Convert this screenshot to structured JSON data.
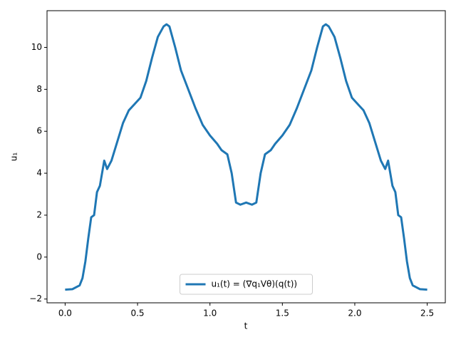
{
  "chart_data": {
    "type": "line",
    "xlabel": "t",
    "ylabel": "u₁",
    "series": [
      {
        "name": "u₁(t) = (∇q₁Vθ)(q(t))",
        "color": "#1f77b4",
        "x": [
          0,
          0.05,
          0.1,
          0.12,
          0.14,
          0.16,
          0.18,
          0.2,
          0.22,
          0.24,
          0.27,
          0.29,
          0.32,
          0.36,
          0.4,
          0.44,
          0.48,
          0.52,
          0.56,
          0.6,
          0.64,
          0.68,
          0.7,
          0.72,
          0.76,
          0.8,
          0.85,
          0.9,
          0.95,
          1.0,
          1.05,
          1.08,
          1.12,
          1.15,
          1.18,
          1.21,
          1.25,
          1.29,
          1.32,
          1.35,
          1.38,
          1.42,
          1.45,
          1.5,
          1.55,
          1.6,
          1.65,
          1.7,
          1.74,
          1.78,
          1.8,
          1.82,
          1.86,
          1.9,
          1.94,
          1.98,
          2.02,
          2.06,
          2.1,
          2.14,
          2.18,
          2.21,
          2.23,
          2.26,
          2.28,
          2.3,
          2.32,
          2.34,
          2.36,
          2.38,
          2.4,
          2.45,
          2.5
        ],
        "values": [
          -1.55,
          -1.53,
          -1.35,
          -1.0,
          -0.2,
          0.9,
          1.9,
          2.0,
          3.1,
          3.4,
          4.6,
          4.2,
          4.6,
          5.5,
          6.4,
          7.0,
          7.3,
          7.6,
          8.4,
          9.5,
          10.5,
          11.0,
          11.1,
          11.0,
          10.0,
          8.9,
          8.0,
          7.1,
          6.3,
          5.8,
          5.4,
          5.1,
          4.9,
          4.0,
          2.6,
          2.5,
          2.6,
          2.5,
          2.6,
          4.0,
          4.9,
          5.1,
          5.4,
          5.8,
          6.3,
          7.1,
          8.0,
          8.9,
          10.0,
          11.0,
          11.1,
          11.0,
          10.5,
          9.5,
          8.4,
          7.6,
          7.3,
          7.0,
          6.4,
          5.5,
          4.6,
          4.2,
          4.6,
          3.4,
          3.1,
          2.0,
          1.9,
          0.9,
          -0.2,
          -1.0,
          -1.35,
          -1.53,
          -1.55
        ]
      }
    ],
    "xlim": [
      -0.125,
      2.625
    ],
    "xticks": [
      {
        "value": 0,
        "label": "0.0"
      },
      0.5,
      {
        "value": 1,
        "label": "1.0"
      },
      1.5,
      {
        "value": 2,
        "label": "2.0"
      },
      2.5
    ],
    "ylim": [
      -2.18,
      11.75
    ],
    "yticks": [
      {
        "value": -2,
        "label": "−2"
      },
      0,
      2,
      4,
      6,
      8,
      10
    ],
    "legend": "lower center"
  }
}
